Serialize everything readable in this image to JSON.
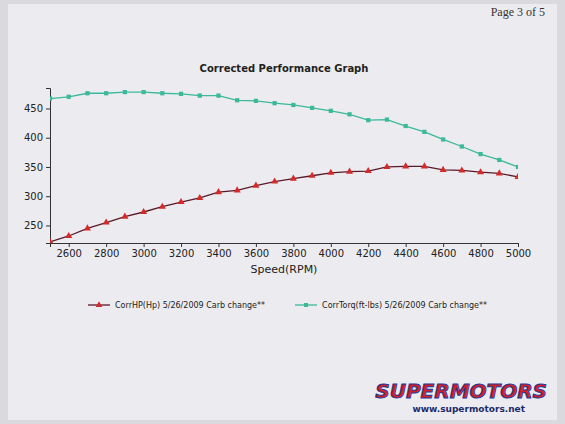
{
  "chart_data": {
    "type": "line",
    "title": "Corrected Performance Graph",
    "x_label": "Speed(RPM)",
    "annotations": [
      "Page 3 of 5",
      "SUPERMOTORS",
      "www.supermotors.net"
    ],
    "x": [
      2500,
      2600,
      2700,
      2800,
      2900,
      3000,
      3100,
      3200,
      3300,
      3400,
      3500,
      3600,
      3700,
      3800,
      3900,
      4000,
      4100,
      4200,
      4300,
      4400,
      4500,
      4600,
      4700,
      4800,
      4900,
      5000
    ],
    "series": [
      {
        "name": "CorrHP(Hp) 5/26/2009 Carb change**",
        "color": "#5a1a2a",
        "marker": "triangle",
        "line_style": "solid",
        "values": [
          222,
          232,
          245,
          255,
          265,
          273,
          282,
          290,
          297,
          307,
          310,
          318,
          325,
          330,
          335,
          340,
          342,
          343,
          350,
          351,
          351,
          345,
          344,
          341,
          339,
          333
        ]
      },
      {
        "name": "CorrTorq(ft-lbs) 5/26/2009 Carb change**",
        "color": "#3cb89a",
        "marker": "square",
        "line_style": "solid",
        "values": [
          467,
          470,
          476,
          476,
          478,
          478,
          476,
          475,
          472,
          472,
          464,
          463,
          459,
          456,
          451,
          446,
          440,
          430,
          431,
          420,
          410,
          397,
          385,
          372,
          362,
          350
        ]
      }
    ],
    "xlim": [
      2500,
      5000
    ],
    "xticks": [
      2600,
      2800,
      3000,
      3200,
      3400,
      3600,
      3800,
      4000,
      4200,
      4400,
      4600,
      4800,
      5000
    ],
    "ylim": [
      220,
      485
    ],
    "yticks": [
      250,
      300,
      350,
      400,
      450
    ],
    "grid": false,
    "legend": "bottom"
  }
}
